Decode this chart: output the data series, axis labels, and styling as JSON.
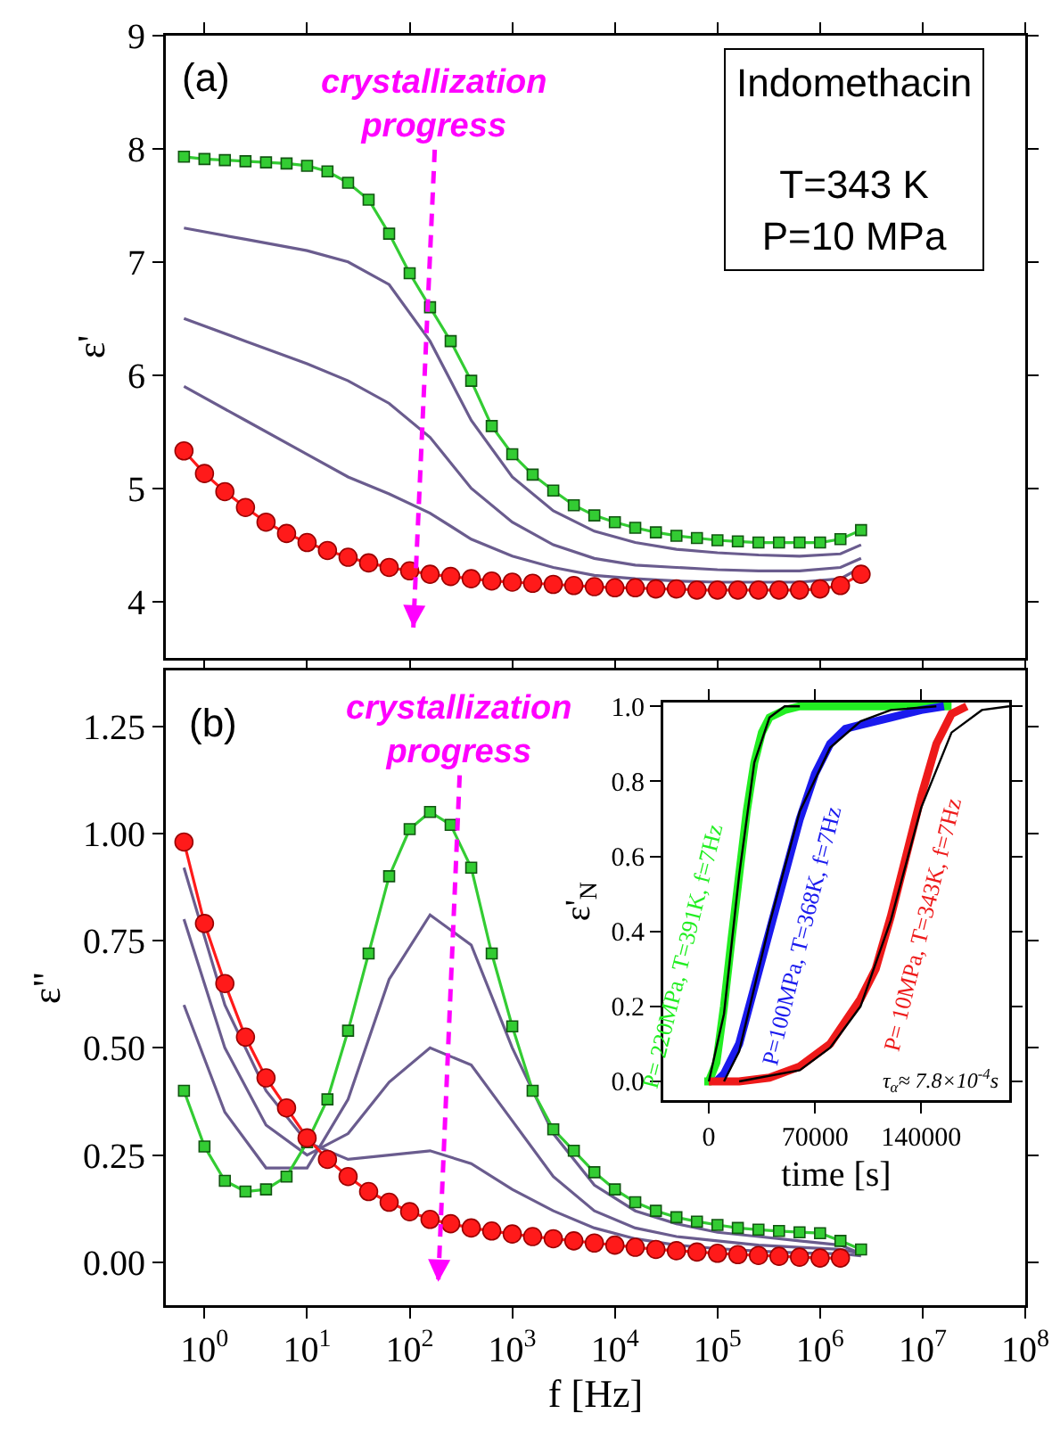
{
  "chart_data": [
    {
      "type": "line",
      "ylabel": "ε'",
      "log": "x",
      "grid": false,
      "legend": false,
      "tick_labels": "y",
      "annotations": [
        "(a)",
        "crystallization progress",
        "Indomethacin\n\nT=343 K\nP=10 MPa"
      ],
      "xlim": [
        0.42,
        100000000
      ],
      "ylim": [
        3.5,
        9
      ],
      "yticks": [
        4,
        5,
        6,
        7,
        8,
        9
      ],
      "xticks": [
        {
          "value": 1,
          "label": null
        },
        {
          "value": 10,
          "label": null
        },
        {
          "value": 100,
          "label": null
        },
        {
          "value": 1000,
          "label": null
        },
        {
          "value": 10000,
          "label": null
        },
        {
          "value": 100000,
          "label": null
        },
        {
          "value": 1000000,
          "label": null
        },
        {
          "value": 10000000,
          "label": null
        },
        {
          "value": 100000000,
          "label": null
        }
      ],
      "x": [
        0.631,
        1,
        1.58,
        2.51,
        3.98,
        6.31,
        10,
        15.8,
        25.1,
        39.8,
        63.1,
        100,
        158,
        251,
        398,
        631,
        1000,
        1580,
        2510,
        3980,
        6310,
        10000,
        15800,
        25100,
        39800,
        63100,
        100000,
        158000,
        251000,
        398000,
        631000,
        1000000,
        1580000,
        2510000
      ],
      "series": [
        {
          "color": "#6a5c8e",
          "marker": "none",
          "x": [
            0.631,
            2.51,
            10,
            25.1,
            63.1,
            158,
            398,
            1000,
            2510,
            6310,
            15800,
            39800,
            100000,
            251000,
            631000,
            1580000,
            2510000
          ],
          "values": [
            7.3,
            7.2,
            7.1,
            7.0,
            6.8,
            6.3,
            5.6,
            5.1,
            4.8,
            4.62,
            4.52,
            4.46,
            4.43,
            4.41,
            4.4,
            4.42,
            4.5
          ]
        },
        {
          "color": "#6a5c8e",
          "marker": "none",
          "x": [
            0.631,
            2.51,
            10,
            25.1,
            63.1,
            158,
            398,
            1000,
            2510,
            6310,
            15800,
            39800,
            100000,
            251000,
            631000,
            1580000,
            2510000
          ],
          "values": [
            6.5,
            6.3,
            6.1,
            5.95,
            5.75,
            5.45,
            5.0,
            4.7,
            4.5,
            4.38,
            4.32,
            4.3,
            4.28,
            4.27,
            4.27,
            4.3,
            4.38
          ]
        },
        {
          "color": "#6a5c8e",
          "marker": "none",
          "x": [
            0.631,
            2.51,
            10,
            25.1,
            63.1,
            158,
            398,
            1000,
            2510,
            6310,
            15800,
            39800,
            100000,
            251000,
            631000,
            1580000,
            2510000
          ],
          "values": [
            5.9,
            5.6,
            5.3,
            5.1,
            4.95,
            4.78,
            4.55,
            4.4,
            4.3,
            4.23,
            4.2,
            4.18,
            4.17,
            4.17,
            4.17,
            4.2,
            4.3
          ]
        },
        {
          "color": "#33cc33",
          "marker": "square",
          "values": [
            7.93,
            7.91,
            7.9,
            7.89,
            7.88,
            7.87,
            7.85,
            7.8,
            7.7,
            7.55,
            7.25,
            6.9,
            6.6,
            6.3,
            5.95,
            5.55,
            5.3,
            5.12,
            4.98,
            4.85,
            4.76,
            4.7,
            4.65,
            4.61,
            4.58,
            4.56,
            4.54,
            4.53,
            4.52,
            4.52,
            4.52,
            4.52,
            4.55,
            4.63
          ]
        },
        {
          "color": "#ff1a1a",
          "marker": "circle",
          "values": [
            5.33,
            5.13,
            4.97,
            4.83,
            4.7,
            4.6,
            4.52,
            4.45,
            4.39,
            4.34,
            4.3,
            4.27,
            4.24,
            4.22,
            4.2,
            4.18,
            4.17,
            4.16,
            4.15,
            4.14,
            4.13,
            4.12,
            4.12,
            4.11,
            4.11,
            4.1,
            4.1,
            4.1,
            4.1,
            4.1,
            4.1,
            4.11,
            4.14,
            4.24
          ]
        }
      ]
    },
    {
      "type": "line",
      "xlabel": "f [Hz]",
      "ylabel": "ε\"",
      "log": "x",
      "grid": false,
      "legend": false,
      "annotations": [
        "(b)",
        "crystallization progress"
      ],
      "xlim": [
        0.42,
        100000000
      ],
      "ylim": [
        -0.1,
        1.38
      ],
      "yticks": [
        {
          "value": 0,
          "label": "0.00"
        },
        {
          "value": 0.25,
          "label": "0.25"
        },
        {
          "value": 0.5,
          "label": "0.50"
        },
        {
          "value": 0.75,
          "label": "0.75"
        },
        {
          "value": 1,
          "label": "1.00"
        },
        {
          "value": 1.25,
          "label": "1.25"
        }
      ],
      "xticks": [
        {
          "value": 1,
          "label": "10$^{0}$"
        },
        {
          "value": 10,
          "label": "10$^{1}$"
        },
        {
          "value": 100,
          "label": "10$^{2}$"
        },
        {
          "value": 1000,
          "label": "10$^{3}$"
        },
        {
          "value": 10000,
          "label": "10$^{4}$"
        },
        {
          "value": 100000,
          "label": "10$^{5}$"
        },
        {
          "value": 1000000,
          "label": "10$^{6}$"
        },
        {
          "value": 10000000,
          "label": "10$^{7}$"
        },
        {
          "value": 100000000,
          "label": "10$^{8}$"
        }
      ],
      "x": [
        0.631,
        1,
        1.58,
        2.51,
        3.98,
        6.31,
        10,
        15.8,
        25.1,
        39.8,
        63.1,
        100,
        158,
        251,
        398,
        631,
        1000,
        1580,
        2510,
        3980,
        6310,
        10000,
        15800,
        25100,
        39800,
        63100,
        100000,
        158000,
        251000,
        398000,
        631000,
        1000000,
        1580000,
        2510000
      ],
      "series": [
        {
          "color": "#6a5c8e",
          "marker": "none",
          "x": [
            0.631,
            1.58,
            3.98,
            10,
            25.1,
            63.1,
            158,
            398,
            1000,
            2510,
            6310,
            15800,
            39800,
            100000,
            251000,
            631000,
            1580000,
            2510000
          ],
          "values": [
            0.6,
            0.35,
            0.22,
            0.22,
            0.38,
            0.66,
            0.81,
            0.74,
            0.5,
            0.3,
            0.18,
            0.12,
            0.09,
            0.07,
            0.06,
            0.05,
            0.04,
            0.02
          ]
        },
        {
          "color": "#6a5c8e",
          "marker": "none",
          "x": [
            0.631,
            1.58,
            3.98,
            10,
            25.1,
            63.1,
            158,
            398,
            1000,
            2510,
            6310,
            15800,
            39800,
            100000,
            251000,
            631000,
            1580000,
            2510000
          ],
          "values": [
            0.8,
            0.5,
            0.32,
            0.25,
            0.3,
            0.42,
            0.5,
            0.46,
            0.33,
            0.2,
            0.12,
            0.08,
            0.06,
            0.05,
            0.04,
            0.035,
            0.03,
            0.02
          ]
        },
        {
          "color": "#6a5c8e",
          "marker": "none",
          "x": [
            0.631,
            1.58,
            3.98,
            10,
            25.1,
            63.1,
            158,
            398,
            1000,
            2510,
            6310,
            15800,
            39800,
            100000,
            251000,
            631000,
            1580000,
            2510000
          ],
          "values": [
            0.92,
            0.6,
            0.4,
            0.28,
            0.24,
            0.25,
            0.26,
            0.23,
            0.17,
            0.12,
            0.08,
            0.055,
            0.04,
            0.032,
            0.026,
            0.022,
            0.02,
            0.015
          ]
        },
        {
          "color": "#33cc33",
          "marker": "square",
          "values": [
            0.4,
            0.27,
            0.19,
            0.165,
            0.17,
            0.2,
            0.28,
            0.38,
            0.54,
            0.72,
            0.9,
            1.01,
            1.05,
            1.02,
            0.92,
            0.72,
            0.55,
            0.4,
            0.31,
            0.26,
            0.21,
            0.17,
            0.14,
            0.12,
            0.105,
            0.095,
            0.087,
            0.08,
            0.076,
            0.073,
            0.07,
            0.068,
            0.05,
            0.03
          ]
        },
        {
          "color": "#ff1a1a",
          "marker": "circle",
          "values": [
            0.98,
            0.79,
            0.65,
            0.525,
            0.43,
            0.36,
            0.29,
            0.24,
            0.2,
            0.165,
            0.14,
            0.118,
            0.1,
            0.09,
            0.08,
            0.073,
            0.066,
            0.06,
            0.055,
            0.05,
            0.045,
            0.04,
            0.035,
            0.03,
            0.027,
            0.024,
            0.021,
            0.018,
            0.016,
            0.014,
            0.012,
            0.01,
            0.01,
            null
          ]
        }
      ]
    },
    {
      "type": "line",
      "xlabel": "time [s]",
      "ylabel": "ε'$_{N}$",
      "grid": false,
      "legend": false,
      "marker": "none",
      "annotations": [
        "τ$_{α}$≈ 7.8×10$^{-4}$s"
      ],
      "xlim": [
        -30000,
        198000
      ],
      "xticks": [
        0,
        70000,
        140000
      ],
      "ylim": [
        -0.05,
        1.01
      ],
      "yticks": [
        {
          "value": 0,
          "label": "0.0"
        },
        {
          "value": 0.2,
          "label": "0.2"
        },
        {
          "value": 0.4,
          "label": "0.4"
        },
        {
          "value": 0.6,
          "label": "0.6"
        },
        {
          "value": 0.8,
          "label": "0.8"
        },
        {
          "value": 1,
          "label": "1.0"
        }
      ],
      "series": [
        {
          "name": "P= 220MPa, T=391K, f=7Hz",
          "color": "#22ee22",
          "x": [
            -3000,
            0,
            5000,
            10000,
            15000,
            20000,
            25000,
            30000,
            35000,
            40000,
            50000,
            60000,
            100000,
            160000
          ],
          "values": [
            0,
            0,
            0.05,
            0.2,
            0.38,
            0.55,
            0.72,
            0.85,
            0.93,
            0.97,
            0.99,
            1,
            1,
            1
          ]
        },
        {
          "name": "P=100MPa, T=368K, f=7Hz",
          "color": "#1a1aee",
          "x": [
            5000,
            10000,
            20000,
            30000,
            40000,
            50000,
            60000,
            70000,
            80000,
            90000,
            100000,
            120000,
            140000,
            155000
          ],
          "values": [
            0,
            0.02,
            0.1,
            0.25,
            0.4,
            0.55,
            0.7,
            0.82,
            0.9,
            0.94,
            0.95,
            0.97,
            0.99,
            1
          ]
        },
        {
          "name": "P= 10MPa, T=343K, f=7Hz",
          "color": "#ee1a1a",
          "x": [
            0,
            20000,
            40000,
            60000,
            80000,
            100000,
            110000,
            120000,
            130000,
            140000,
            150000,
            160000,
            170000
          ],
          "values": [
            0,
            0,
            0.01,
            0.04,
            0.1,
            0.22,
            0.3,
            0.44,
            0.6,
            0.76,
            0.9,
            0.98,
            1
          ]
        },
        {
          "color": "#000000",
          "x": [
            0,
            10000,
            20000,
            30000,
            40000,
            50000,
            60000
          ],
          "values": [
            0,
            0.18,
            0.55,
            0.85,
            0.97,
            1,
            1
          ]
        },
        {
          "color": "#000000",
          "x": [
            10000,
            20000,
            40000,
            60000,
            80000,
            100000,
            120000,
            150000
          ],
          "values": [
            0,
            0.08,
            0.42,
            0.72,
            0.89,
            0.96,
            0.99,
            1
          ]
        },
        {
          "color": "#000000",
          "x": [
            20000,
            60000,
            80000,
            100000,
            120000,
            140000,
            160000,
            180000,
            198000
          ],
          "values": [
            0,
            0.03,
            0.09,
            0.2,
            0.43,
            0.73,
            0.93,
            0.99,
            1
          ]
        }
      ]
    }
  ]
}
